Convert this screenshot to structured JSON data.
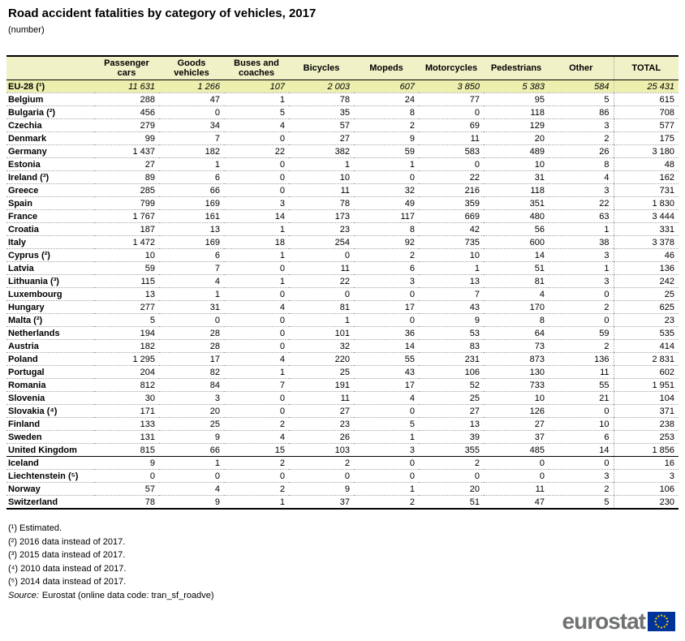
{
  "chart_data": {
    "type": "table",
    "title": "Road accident fatalities by category of vehicles, 2017",
    "subtitle": "(number)",
    "columns": [
      "Passenger cars",
      "Goods vehicles",
      "Buses and coaches",
      "Bicycles",
      "Mopeds",
      "Motorcycles",
      "Pedestrians",
      "Other",
      "TOTAL"
    ],
    "rows": [
      {
        "name": "EU-28 (¹)",
        "group": "eu28",
        "values": [
          "11 631",
          "1 266",
          "107",
          "2 003",
          "607",
          "3 850",
          "5 383",
          "584",
          "25 431"
        ]
      },
      {
        "name": "Belgium",
        "group": "eu",
        "values": [
          "288",
          "47",
          "1",
          "78",
          "24",
          "77",
          "95",
          "5",
          "615"
        ]
      },
      {
        "name": "Bulgaria (²)",
        "group": "eu",
        "values": [
          "456",
          "0",
          "5",
          "35",
          "8",
          "0",
          "118",
          "86",
          "708"
        ]
      },
      {
        "name": "Czechia",
        "group": "eu",
        "values": [
          "279",
          "34",
          "4",
          "57",
          "2",
          "69",
          "129",
          "3",
          "577"
        ]
      },
      {
        "name": "Denmark",
        "group": "eu",
        "values": [
          "99",
          "7",
          "0",
          "27",
          "9",
          "11",
          "20",
          "2",
          "175"
        ]
      },
      {
        "name": "Germany",
        "group": "eu",
        "values": [
          "1 437",
          "182",
          "22",
          "382",
          "59",
          "583",
          "489",
          "26",
          "3 180"
        ]
      },
      {
        "name": "Estonia",
        "group": "eu",
        "values": [
          "27",
          "1",
          "0",
          "1",
          "1",
          "0",
          "10",
          "8",
          "48"
        ]
      },
      {
        "name": "Ireland (³)",
        "group": "eu",
        "values": [
          "89",
          "6",
          "0",
          "10",
          "0",
          "22",
          "31",
          "4",
          "162"
        ]
      },
      {
        "name": "Greece",
        "group": "eu",
        "values": [
          "285",
          "66",
          "0",
          "11",
          "32",
          "216",
          "118",
          "3",
          "731"
        ]
      },
      {
        "name": "Spain",
        "group": "eu",
        "values": [
          "799",
          "169",
          "3",
          "78",
          "49",
          "359",
          "351",
          "22",
          "1 830"
        ]
      },
      {
        "name": "France",
        "group": "eu",
        "values": [
          "1 767",
          "161",
          "14",
          "173",
          "117",
          "669",
          "480",
          "63",
          "3 444"
        ]
      },
      {
        "name": "Croatia",
        "group": "eu",
        "values": [
          "187",
          "13",
          "1",
          "23",
          "8",
          "42",
          "56",
          "1",
          "331"
        ]
      },
      {
        "name": "Italy",
        "group": "eu",
        "values": [
          "1 472",
          "169",
          "18",
          "254",
          "92",
          "735",
          "600",
          "38",
          "3 378"
        ]
      },
      {
        "name": "Cyprus (²)",
        "group": "eu",
        "values": [
          "10",
          "6",
          "1",
          "0",
          "2",
          "10",
          "14",
          "3",
          "46"
        ]
      },
      {
        "name": "Latvia",
        "group": "eu",
        "values": [
          "59",
          "7",
          "0",
          "11",
          "6",
          "1",
          "51",
          "1",
          "136"
        ]
      },
      {
        "name": "Lithuania (³)",
        "group": "eu",
        "values": [
          "115",
          "4",
          "1",
          "22",
          "3",
          "13",
          "81",
          "3",
          "242"
        ]
      },
      {
        "name": "Luxembourg",
        "group": "eu",
        "values": [
          "13",
          "1",
          "0",
          "0",
          "0",
          "7",
          "4",
          "0",
          "25"
        ]
      },
      {
        "name": "Hungary",
        "group": "eu",
        "values": [
          "277",
          "31",
          "4",
          "81",
          "17",
          "43",
          "170",
          "2",
          "625"
        ]
      },
      {
        "name": "Malta (²)",
        "group": "eu",
        "values": [
          "5",
          "0",
          "0",
          "1",
          "0",
          "9",
          "8",
          "0",
          "23"
        ]
      },
      {
        "name": "Netherlands",
        "group": "eu",
        "values": [
          "194",
          "28",
          "0",
          "101",
          "36",
          "53",
          "64",
          "59",
          "535"
        ]
      },
      {
        "name": "Austria",
        "group": "eu",
        "values": [
          "182",
          "28",
          "0",
          "32",
          "14",
          "83",
          "73",
          "2",
          "414"
        ]
      },
      {
        "name": "Poland",
        "group": "eu",
        "values": [
          "1 295",
          "17",
          "4",
          "220",
          "55",
          "231",
          "873",
          "136",
          "2 831"
        ]
      },
      {
        "name": "Portugal",
        "group": "eu",
        "values": [
          "204",
          "82",
          "1",
          "25",
          "43",
          "106",
          "130",
          "11",
          "602"
        ]
      },
      {
        "name": "Romania",
        "group": "eu",
        "values": [
          "812",
          "84",
          "7",
          "191",
          "17",
          "52",
          "733",
          "55",
          "1 951"
        ]
      },
      {
        "name": "Slovenia",
        "group": "eu",
        "values": [
          "30",
          "3",
          "0",
          "11",
          "4",
          "25",
          "10",
          "21",
          "104"
        ]
      },
      {
        "name": "Slovakia (⁴)",
        "group": "eu",
        "values": [
          "171",
          "20",
          "0",
          "27",
          "0",
          "27",
          "126",
          "0",
          "371"
        ]
      },
      {
        "name": "Finland",
        "group": "eu",
        "values": [
          "133",
          "25",
          "2",
          "23",
          "5",
          "13",
          "27",
          "10",
          "238"
        ]
      },
      {
        "name": "Sweden",
        "group": "eu",
        "values": [
          "131",
          "9",
          "4",
          "26",
          "1",
          "39",
          "37",
          "6",
          "253"
        ]
      },
      {
        "name": "United Kingdom",
        "group": "eu",
        "values": [
          "815",
          "66",
          "15",
          "103",
          "3",
          "355",
          "485",
          "14",
          "1 856"
        ]
      },
      {
        "name": "Iceland",
        "group": "efta",
        "values": [
          "9",
          "1",
          "2",
          "2",
          "0",
          "2",
          "0",
          "0",
          "16"
        ]
      },
      {
        "name": "Liechtenstein (⁵)",
        "group": "efta",
        "values": [
          "0",
          "0",
          "0",
          "0",
          "0",
          "0",
          "0",
          "3",
          "3"
        ]
      },
      {
        "name": "Norway",
        "group": "efta",
        "values": [
          "57",
          "4",
          "2",
          "9",
          "1",
          "20",
          "11",
          "2",
          "106"
        ]
      },
      {
        "name": "Switzerland",
        "group": "efta",
        "values": [
          "78",
          "9",
          "1",
          "37",
          "2",
          "51",
          "47",
          "5",
          "230"
        ]
      }
    ],
    "footnotes": [
      "(¹) Estimated.",
      "(²) 2016 data instead of 2017.",
      "(³) 2015 data instead of 2017.",
      "(⁴) 2010 data instead of 2017.",
      "(⁵) 2014 data instead of 2017."
    ],
    "source": {
      "label": "Source:",
      "text": "Eurostat (online data code: tran_sf_roadve)"
    },
    "colors": {
      "header_bg": "#f0f1c7",
      "aggregate_row_bg": "#ecefae",
      "logo_gray": "#6f7173",
      "eu_blue": "#003399",
      "eu_star_yellow": "#ffcc00"
    },
    "logo_text": "eurostat"
  }
}
